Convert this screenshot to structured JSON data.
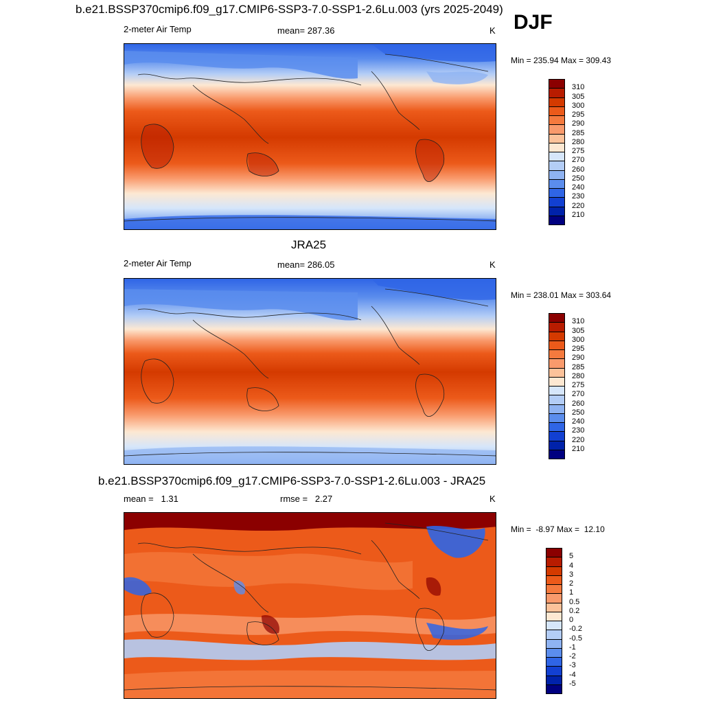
{
  "season": "DJF",
  "panels": [
    {
      "title": "b.e21.BSSP370cmip6.f09_g17.CMIP6-SSP3-7.0-SSP1-2.6Lu.003 (yrs 2025-2049)",
      "left": "2-meter Air Temp",
      "center": "mean= 287.36",
      "units": "K",
      "minmax": "Min = 235.94 Max = 309.43"
    },
    {
      "title": "JRA25",
      "left": "2-meter Air Temp",
      "center": "mean= 286.05",
      "units": "K",
      "minmax": "Min = 238.01 Max = 303.64"
    },
    {
      "title": "b.e21.BSSP370cmip6.f09_g17.CMIP6-SSP3-7.0-SSP1-2.6Lu.003 - JRA25",
      "left": "mean =   1.31",
      "center": "rmse =   2.27",
      "units": "K",
      "minmax": "Min =  -8.97 Max =  12.10"
    }
  ],
  "temp_colorbar": {
    "labels": [
      "310",
      "305",
      "300",
      "295",
      "290",
      "285",
      "280",
      "275",
      "270",
      "260",
      "250",
      "240",
      "230",
      "220",
      "210"
    ],
    "colors": [
      "#8b0000",
      "#b81c00",
      "#d43a00",
      "#ec5a1a",
      "#f57a3e",
      "#f99a6c",
      "#fcc29a",
      "#fde8d2",
      "#d6e6fa",
      "#b3cdf6",
      "#8fb3f2",
      "#5b8ded",
      "#2f65e6",
      "#1240d2",
      "#0022aa",
      "#000080"
    ]
  },
  "diff_colorbar": {
    "labels": [
      "5",
      "4",
      "3",
      "2",
      "1",
      "0.5",
      "0.2",
      "0",
      "-0.2",
      "-0.5",
      "-1",
      "-2",
      "-3",
      "-4",
      "-5"
    ],
    "colors": [
      "#8b0000",
      "#b81c00",
      "#d43a00",
      "#ec5a1a",
      "#f57a3e",
      "#f99a6c",
      "#fcc29a",
      "#fde8d2",
      "#d6e6fa",
      "#b3cdf6",
      "#8fb3f2",
      "#5b8ded",
      "#2f65e6",
      "#1240d2",
      "#0022aa",
      "#000080"
    ]
  }
}
